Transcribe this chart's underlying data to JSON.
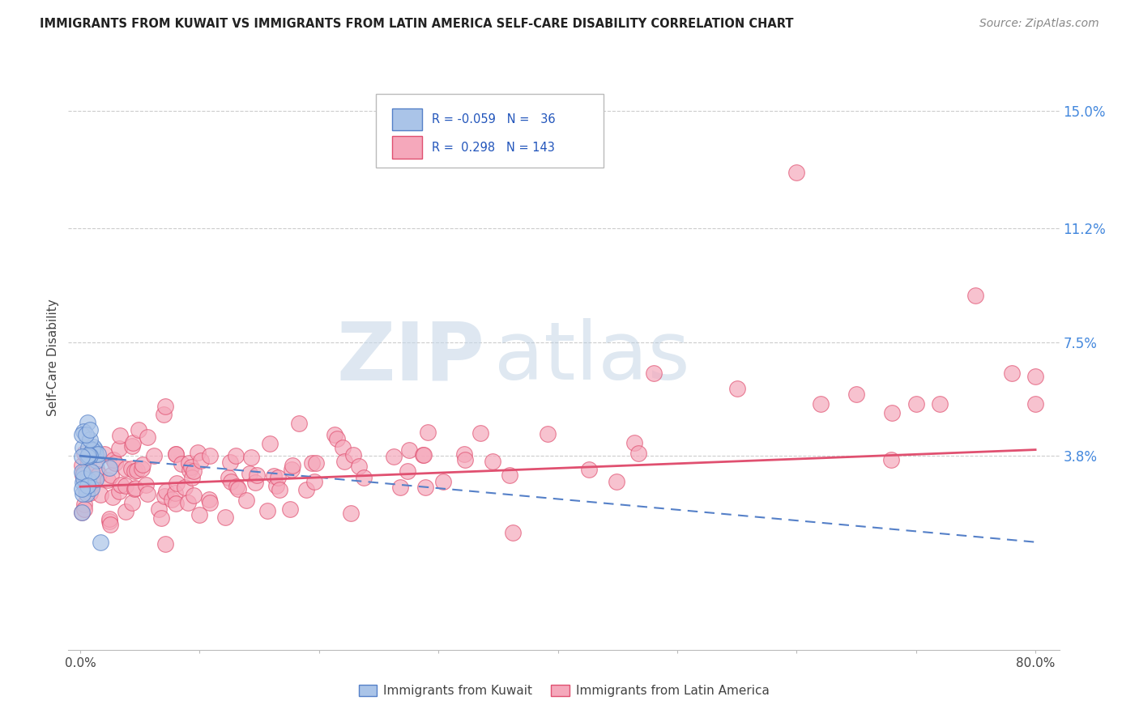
{
  "title": "IMMIGRANTS FROM KUWAIT VS IMMIGRANTS FROM LATIN AMERICA SELF-CARE DISABILITY CORRELATION CHART",
  "source": "Source: ZipAtlas.com",
  "ylabel": "Self-Care Disability",
  "xlim": [
    -0.01,
    0.82
  ],
  "ylim": [
    -0.025,
    0.165
  ],
  "ytick_vals": [
    0.038,
    0.075,
    0.112,
    0.15
  ],
  "ytick_labels": [
    "3.8%",
    "7.5%",
    "11.2%",
    "15.0%"
  ],
  "kuwait_color": "#aac4e8",
  "latin_color": "#f5a8bb",
  "kuwait_edge": "#5580c8",
  "latin_edge": "#e05070",
  "trend_kuwait_color": "#5580c8",
  "trend_latin_color": "#e05070",
  "kuwait_R": -0.059,
  "kuwait_N": 36,
  "latin_R": 0.298,
  "latin_N": 143,
  "watermark_zip": "ZIP",
  "watermark_atlas": "atlas",
  "legend_label_kuwait": "Immigrants from Kuwait",
  "legend_label_latin": "Immigrants from Latin America",
  "background_color": "#ffffff",
  "grid_color": "#cccccc",
  "kuwait_trend_x": [
    0.0,
    0.8
  ],
  "kuwait_trend_y": [
    0.038,
    0.01
  ],
  "latin_trend_x": [
    0.0,
    0.8
  ],
  "latin_trend_y": [
    0.028,
    0.04
  ]
}
